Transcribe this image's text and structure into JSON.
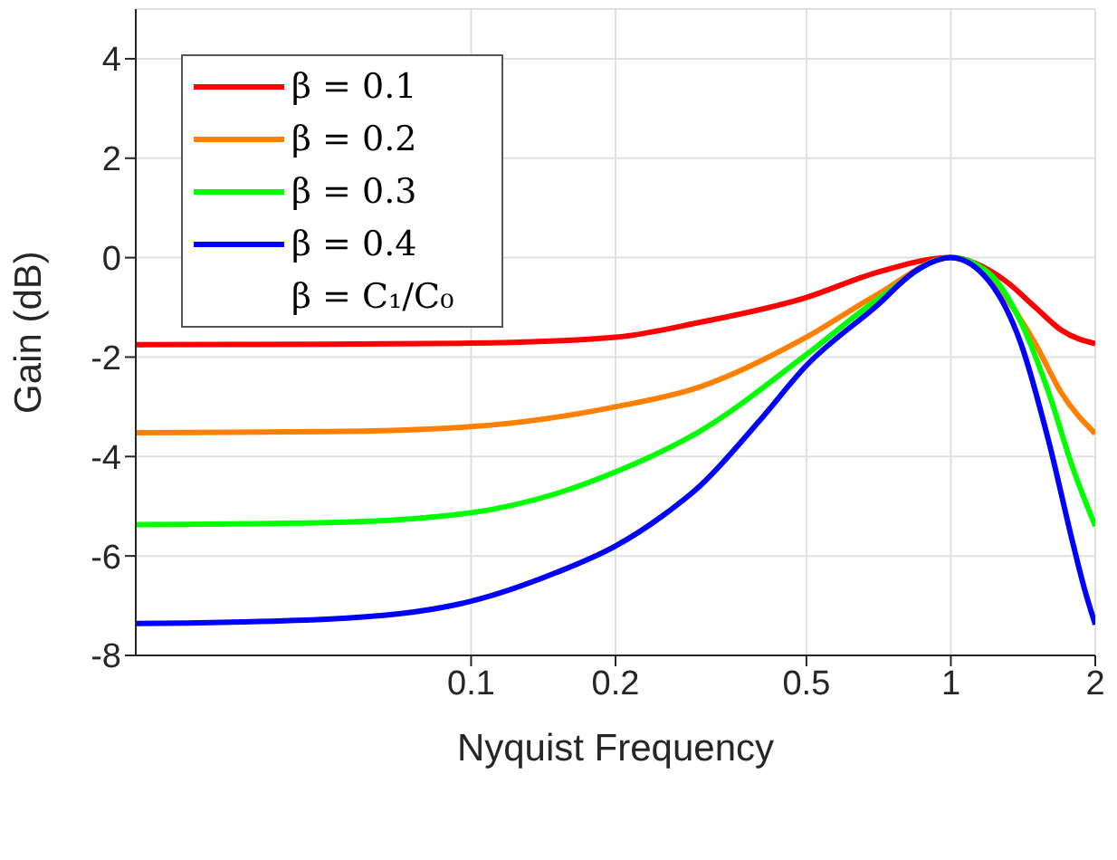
{
  "chart_data": {
    "type": "line",
    "xlabel": "Nyquist Frequency",
    "ylabel": "Gain (dB)",
    "log": "x",
    "xlim": [
      0.02,
      2
    ],
    "xticks": [
      0.1,
      0.2,
      0.5,
      1,
      2
    ],
    "ylim": [
      -8,
      5
    ],
    "yticks": [
      -8,
      -6,
      -4,
      -2,
      0,
      2,
      4
    ],
    "grid": true,
    "legend": "top left",
    "legend_title": "β = C₁/C₀",
    "line_style": "solid",
    "marker": "none",
    "series": [
      {
        "name": "β = 0.1",
        "color": "#ff0000",
        "x": [
          0.02,
          0.05,
          0.1,
          0.2,
          0.3,
          0.5,
          0.7,
          1,
          1.3,
          1.5,
          1.7,
          2
        ],
        "values": [
          -1.75,
          -1.74,
          -1.72,
          -1.6,
          -1.3,
          -0.8,
          -0.3,
          0,
          -0.47,
          -1.0,
          -1.46,
          -1.73
        ]
      },
      {
        "name": "β = 0.2",
        "color": "#ff8000",
        "x": [
          0.02,
          0.05,
          0.1,
          0.2,
          0.3,
          0.5,
          0.7,
          1,
          1.3,
          1.5,
          1.7,
          2
        ],
        "values": [
          -3.52,
          -3.5,
          -3.4,
          -3.0,
          -2.6,
          -1.6,
          -0.75,
          0,
          -0.8,
          -1.73,
          -2.72,
          -3.54
        ]
      },
      {
        "name": "β = 0.3",
        "color": "#00ff00",
        "x": [
          0.02,
          0.05,
          0.1,
          0.15,
          0.2,
          0.3,
          0.5,
          0.7,
          1,
          1.2,
          1.4,
          1.6,
          1.8,
          2
        ],
        "values": [
          -5.37,
          -5.33,
          -5.13,
          -4.75,
          -4.31,
          -3.49,
          -1.95,
          -0.86,
          0,
          -0.31,
          -1.3,
          -2.72,
          -4.26,
          -5.4
        ]
      },
      {
        "name": "β = 0.4",
        "color": "#0000ff",
        "x": [
          0.02,
          0.05,
          0.1,
          0.15,
          0.2,
          0.25,
          0.3,
          0.4,
          0.5,
          0.7,
          0.85,
          1,
          1.2,
          1.4,
          1.6,
          1.8,
          1.9,
          2
        ],
        "values": [
          -7.36,
          -7.27,
          -6.91,
          -6.34,
          -5.8,
          -5.2,
          -4.59,
          -3.27,
          -2.17,
          -0.97,
          -0.25,
          0,
          -0.47,
          -1.73,
          -3.7,
          -5.78,
          -6.67,
          -7.38
        ]
      }
    ]
  }
}
